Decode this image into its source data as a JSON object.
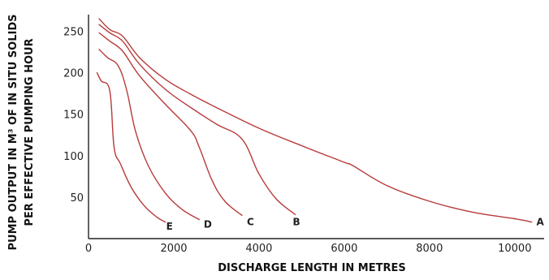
{
  "chart_data": {
    "type": "line",
    "title": "",
    "xlabel": "DISCHARGE LENGTH IN METRES",
    "ylabel_lines": [
      "PUMP OUTPUT IN M³ OF IN SITU SOLIDS",
      "PER EFFECTIVE PUMPING HOUR"
    ],
    "xlim": [
      0,
      10500
    ],
    "ylim": [
      0,
      270
    ],
    "x_ticks": [
      0,
      2000,
      4000,
      6000,
      8000,
      10000
    ],
    "x_tick_labels": [
      "0",
      "2000",
      "4000",
      "6000",
      "8000",
      "10000"
    ],
    "y_ticks": [
      50,
      100,
      150,
      200,
      250
    ],
    "y_tick_labels": [
      "50",
      "100",
      "150",
      "200",
      "250"
    ],
    "grid": false,
    "line_color": "#b83a3a",
    "series": [
      {
        "name": "A",
        "points": [
          [
            250,
            265
          ],
          [
            500,
            252
          ],
          [
            800,
            244
          ],
          [
            1200,
            218
          ],
          [
            1800,
            192
          ],
          [
            2400,
            174
          ],
          [
            3000,
            158
          ],
          [
            4000,
            133
          ],
          [
            5000,
            112
          ],
          [
            6000,
            92
          ],
          [
            6200,
            88
          ],
          [
            7000,
            64
          ],
          [
            8000,
            45
          ],
          [
            9000,
            32
          ],
          [
            10000,
            24
          ],
          [
            10400,
            20
          ]
        ]
      },
      {
        "name": "B",
        "points": [
          [
            250,
            258
          ],
          [
            500,
            248
          ],
          [
            800,
            238
          ],
          [
            1200,
            210
          ],
          [
            1800,
            180
          ],
          [
            2400,
            158
          ],
          [
            3000,
            138
          ],
          [
            3600,
            120
          ],
          [
            4000,
            78
          ],
          [
            4400,
            48
          ],
          [
            4850,
            29
          ]
        ]
      },
      {
        "name": "C",
        "points": [
          [
            250,
            248
          ],
          [
            500,
            238
          ],
          [
            800,
            226
          ],
          [
            1200,
            196
          ],
          [
            1800,
            162
          ],
          [
            2400,
            130
          ],
          [
            2600,
            110
          ],
          [
            2900,
            70
          ],
          [
            3200,
            45
          ],
          [
            3600,
            28
          ]
        ]
      },
      {
        "name": "D",
        "points": [
          [
            250,
            228
          ],
          [
            450,
            218
          ],
          [
            700,
            208
          ],
          [
            900,
            178
          ],
          [
            1100,
            130
          ],
          [
            1400,
            88
          ],
          [
            1800,
            55
          ],
          [
            2200,
            35
          ],
          [
            2600,
            23
          ]
        ]
      },
      {
        "name": "E",
        "points": [
          [
            200,
            200
          ],
          [
            300,
            190
          ],
          [
            500,
            178
          ],
          [
            600,
            110
          ],
          [
            750,
            90
          ],
          [
            1000,
            62
          ],
          [
            1300,
            40
          ],
          [
            1600,
            26
          ],
          [
            1800,
            20
          ]
        ]
      }
    ],
    "curve_labels": [
      {
        "text": "A",
        "x": 10600,
        "y": 16
      },
      {
        "text": "B",
        "x": 4880,
        "y": 16
      },
      {
        "text": "C",
        "x": 3800,
        "y": 16
      },
      {
        "text": "D",
        "x": 2800,
        "y": 13
      },
      {
        "text": "E",
        "x": 1900,
        "y": 11
      }
    ]
  }
}
